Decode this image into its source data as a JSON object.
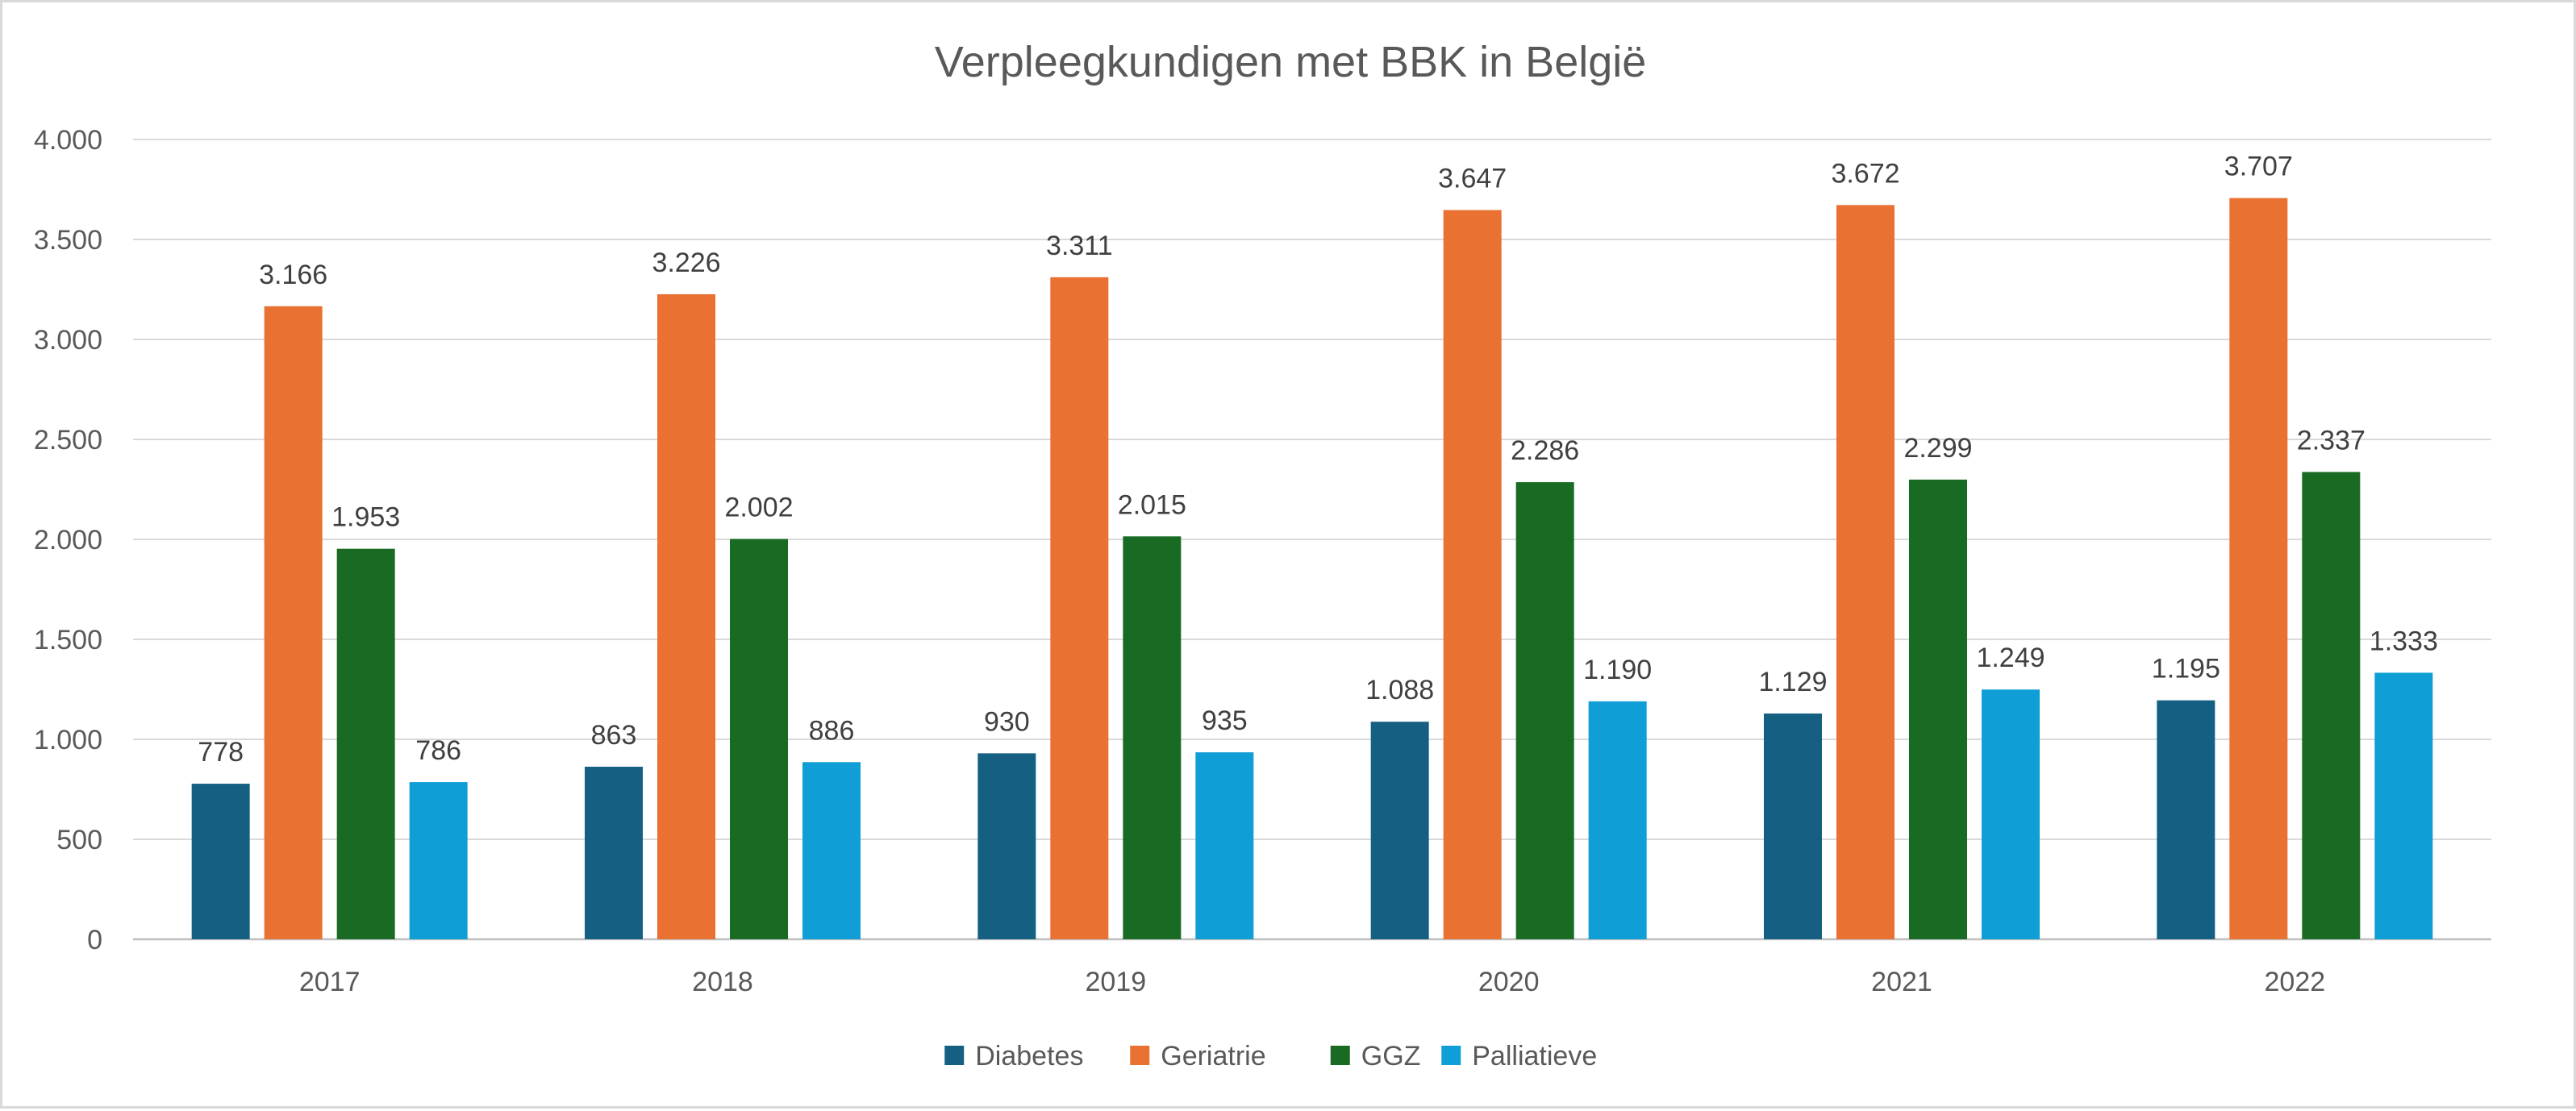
{
  "chart_data": {
    "type": "bar",
    "title": "Verpleegkundigen met BBK in België",
    "xlabel": "",
    "ylabel": "",
    "categories": [
      "2017",
      "2018",
      "2019",
      "2020",
      "2021",
      "2022"
    ],
    "series": [
      {
        "name": "Diabetes",
        "color": "#156082",
        "values": [
          778,
          863,
          930,
          1088,
          1129,
          1195
        ]
      },
      {
        "name": "Geriatrie",
        "color": "#e97132",
        "values": [
          3166,
          3226,
          3311,
          3647,
          3672,
          3707
        ]
      },
      {
        "name": "GGZ",
        "color": "#196b24",
        "values": [
          1953,
          2002,
          2015,
          2286,
          2299,
          2337
        ]
      },
      {
        "name": "Palliatieve",
        "color": "#0f9ed5",
        "values": [
          786,
          886,
          935,
          1190,
          1249,
          1333
        ]
      }
    ],
    "data_labels": [
      [
        "778",
        "863",
        "930",
        "1.088",
        "1.129",
        "1.195"
      ],
      [
        "3.166",
        "3.226",
        "3.311",
        "3.647",
        "3.672",
        "3.707"
      ],
      [
        "1.953",
        "2.002",
        "2.015",
        "2.286",
        "2.299",
        "2.337"
      ],
      [
        "786",
        "886",
        "935",
        "1.190",
        "1.249",
        "1.333"
      ]
    ],
    "y_ticks": [
      0,
      500,
      1000,
      1500,
      2000,
      2500,
      3000,
      3500,
      4000
    ],
    "y_tick_labels": [
      "0",
      "500",
      "1.000",
      "1.500",
      "2.000",
      "2.500",
      "3.000",
      "3.500",
      "4.000"
    ],
    "ylim": [
      0,
      4000
    ],
    "grid": true,
    "legend": "bottom-center"
  }
}
